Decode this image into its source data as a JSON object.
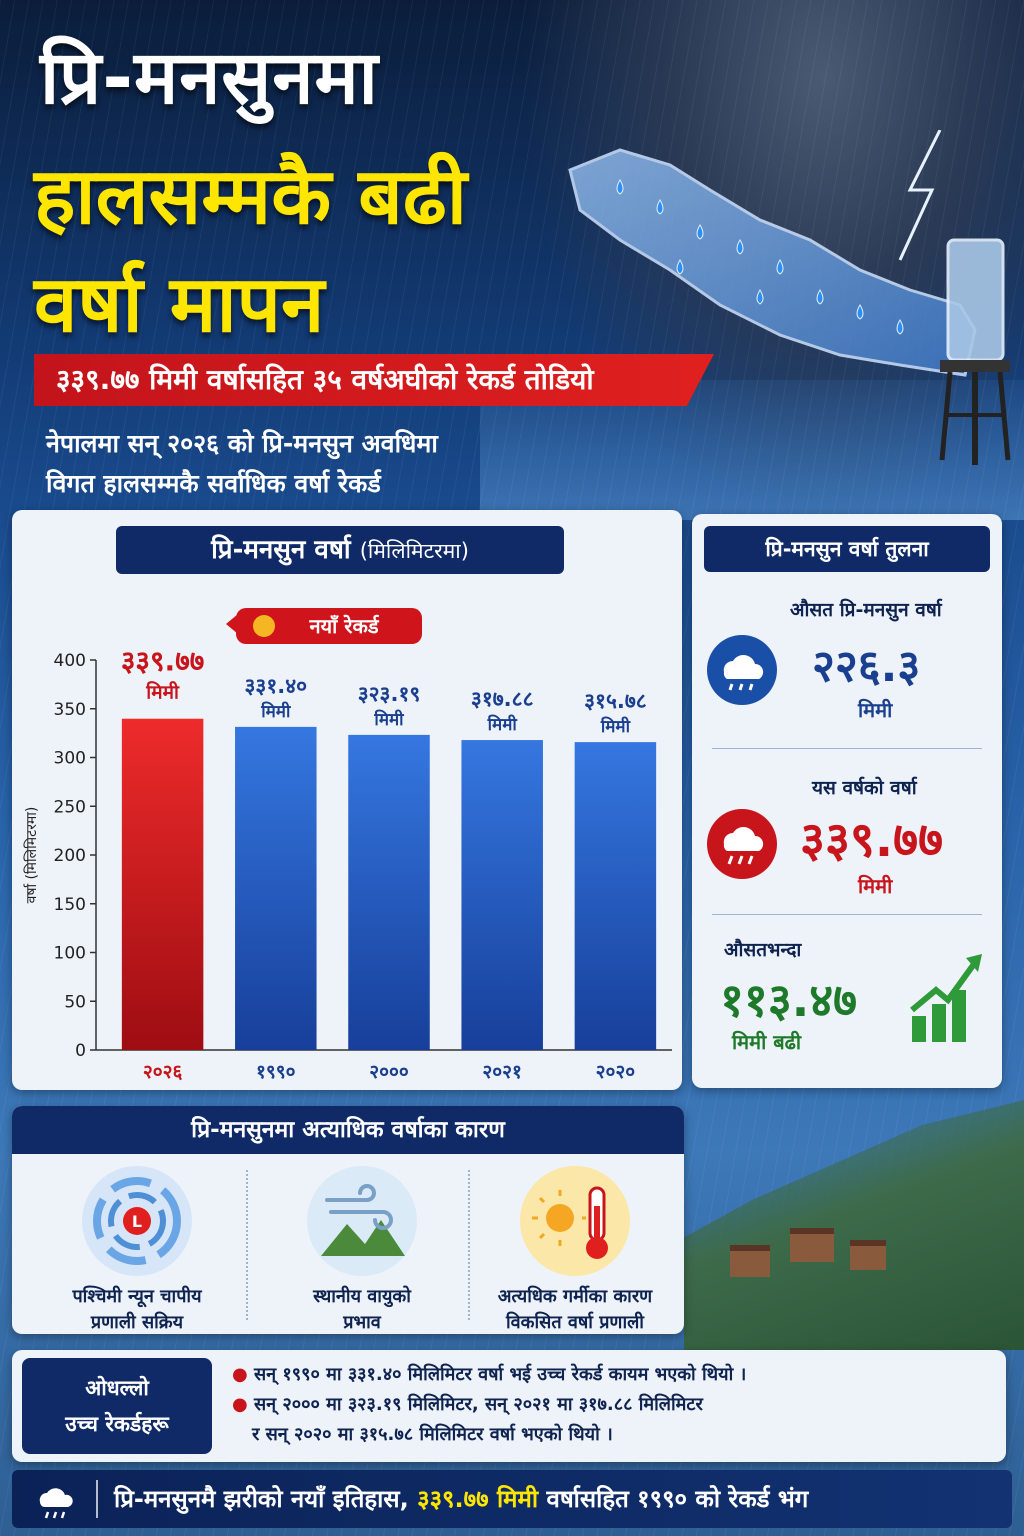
{
  "header": {
    "title_line1": "प्रि-मनसुनमा",
    "title_line2": "हालसम्मकै बढी",
    "title_line3": "वर्षा मापन",
    "ribbon": "३३९.७७ मिमी वर्षासहित ३५ वर्षअघीको रेकर्ड तोडियो",
    "subtitle_line1": "नेपालमा सन् २०२६ को प्रि-मनसुन अवधिमा",
    "subtitle_line2": "विगत हालसम्मकै सर्वाधिक वर्षा रेकर्ड"
  },
  "chart_panel": {
    "title_main": "प्रि-मनसुन वर्षा",
    "title_unit": "(मिलिमिटरमा)",
    "record_badge": "नयाँ रेकर्ड"
  },
  "chart_data": {
    "type": "bar",
    "categories": [
      "२०२६",
      "१९९०",
      "२०००",
      "२०२१",
      "२०२०"
    ],
    "values": [
      339.77,
      331.4,
      323.19,
      317.88,
      315.78
    ],
    "value_labels": [
      "३३९.७७",
      "३३१.४०",
      "३२३.१९",
      "३१७.८८",
      "३१५.७८"
    ],
    "unit_label": "मिमी",
    "ylabel": "वर्षा (मिलिमिटरमा)",
    "ylim": [
      0,
      400
    ],
    "yticks": [
      0,
      50,
      100,
      150,
      200,
      250,
      300,
      350,
      400
    ],
    "colors": [
      "#d0141b",
      "#1f5cc7",
      "#1f5cc7",
      "#1f5cc7",
      "#1f5cc7"
    ],
    "grid": false
  },
  "comparison": {
    "title": "प्रि-मनसुन वर्षा तुलना",
    "avg_label": "औसत प्रि-मनसुन वर्षा",
    "avg_value": "२२६.३",
    "avg_unit": "मिमी",
    "this_label": "यस वर्षको वर्षा",
    "this_value": "३३९.७७",
    "this_unit": "मिमी",
    "diff_label": "औसतभन्दा",
    "diff_value": "११३.४७",
    "diff_unit": "मिमी बढी",
    "colors": {
      "blue": "#1a3f8f",
      "red": "#c8141b",
      "green": "#1e7a2a"
    }
  },
  "causes": {
    "title": "प्रि-मनसुनमा अत्याधिक वर्षाका कारण",
    "items": [
      {
        "line1": "पश्चिमी न्यून चापीय",
        "line2": "प्रणाली सक्रिय",
        "icon": "cyclone-icon"
      },
      {
        "line1": "स्थानीय वायुको",
        "line2": "प्रभाव",
        "icon": "wind-mountain-icon"
      },
      {
        "line1": "अत्यधिक गर्मीका कारण",
        "line2": "विकसित वर्षा प्रणाली",
        "icon": "sun-thermometer-icon"
      }
    ]
  },
  "records": {
    "label_line1": "ओधल्लो",
    "label_line2": "उच्च रेकर्डहरू",
    "bullet1": "सन् १९९० मा ३३१.४० मिलिमिटर वर्षा भई उच्च रेकर्ड कायम भएको थियो ।",
    "bullet2_line1": "सन् २००० मा ३२३.१९ मिलिमिटर, सन् २०२१ मा ३१७.८८ मिलिमिटर",
    "bullet2_line2": "र सन् २०२० मा ३१५.७८ मिलिमिटर वर्षा भएको थियो ।"
  },
  "footer": {
    "text_a": "प्रि-मनसुनमै झरीको नयाँ इतिहास,",
    "text_highlight": "३३९.७७ मिमी",
    "text_b": "वर्षासहित १९९० को रेकर्ड भंग",
    "highlight_color": "#ffe600"
  }
}
